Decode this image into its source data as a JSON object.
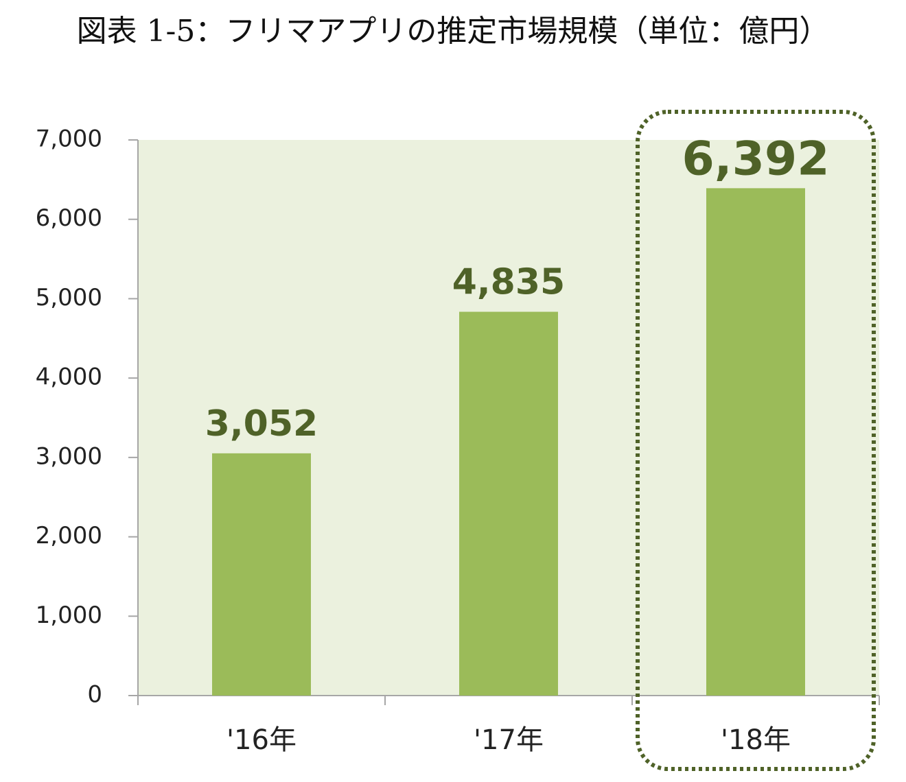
{
  "chart_data": {
    "type": "bar",
    "title": "図表 1-5：フリマアプリの推定市場規模（単位：億円）",
    "xlabel": "",
    "ylabel": "",
    "categories": [
      "'16年",
      "'17年",
      "'18年"
    ],
    "values": [
      3052,
      4835,
      6392
    ],
    "data_labels": [
      "3,052",
      "4,835",
      "6,392"
    ],
    "ylim": [
      0,
      7000
    ],
    "yticks": [
      0,
      1000,
      2000,
      3000,
      4000,
      5000,
      6000,
      7000
    ],
    "ytick_labels": [
      "0",
      "1,000",
      "2,000",
      "3,000",
      "4,000",
      "5,000",
      "6,000",
      "7,000"
    ],
    "grid": false,
    "legend": "none",
    "highlight": "'18年",
    "colors": {
      "bar": "#9bbb59",
      "plot_background": "#ebf1de",
      "data_label": "#4f6228",
      "highlight_border": "#4f6228",
      "axis": "#a6a6a6"
    }
  }
}
